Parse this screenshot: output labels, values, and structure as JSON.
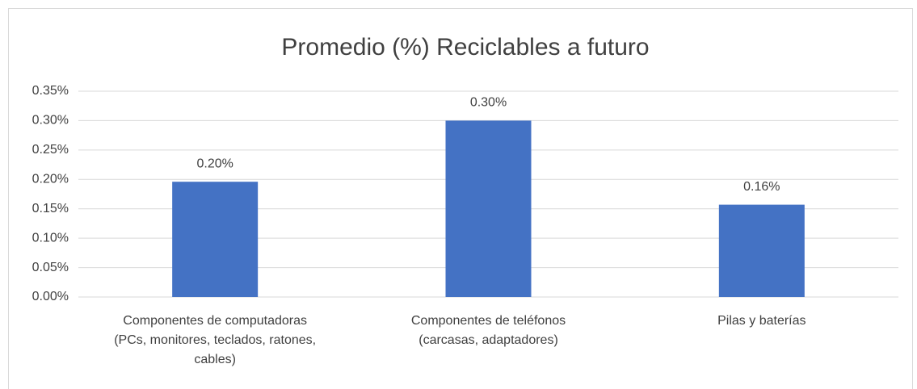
{
  "chart_data": {
    "type": "bar",
    "title": "Promedio (%) Reciclables a futuro",
    "categories": [
      "Componentes de computadoras (PCs, monitores, teclados, ratones, cables)",
      "Componentes de teléfonos (carcasas, adaptadores)",
      "Pilas y baterías"
    ],
    "values": [
      0.196,
      0.3,
      0.157
    ],
    "value_labels": [
      "0.20%",
      "0.30%",
      "0.16%"
    ],
    "color": "#4472c4",
    "ylim": [
      0,
      0.35
    ],
    "yticks": [
      {
        "value": 0,
        "label": "0.00%"
      },
      {
        "value": 0.05,
        "label": "0.05%"
      },
      {
        "value": 0.1,
        "label": "0.10%"
      },
      {
        "value": 0.15,
        "label": "0.15%"
      },
      {
        "value": 0.2,
        "label": "0.20%"
      },
      {
        "value": 0.25,
        "label": "0.25%"
      },
      {
        "value": 0.3,
        "label": "0.30%"
      },
      {
        "value": 0.35,
        "label": "0.35%"
      }
    ],
    "grid": true
  }
}
